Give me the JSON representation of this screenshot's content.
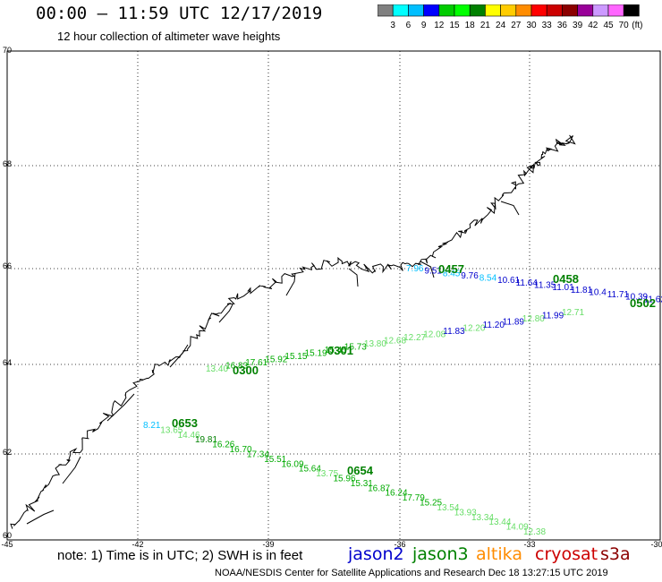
{
  "title": "00:00 – 11:59 UTC 12/17/2019",
  "subtitle": "12 hour collection of altimeter wave heights",
  "legend": {
    "unit": "(ft)",
    "colors": [
      "#808080",
      "#00ffff",
      "#00bfff",
      "#0000ff",
      "#00cc00",
      "#00ff00",
      "#008000",
      "#ffff00",
      "#ffcc00",
      "#ff8c00",
      "#ff0000",
      "#cc0000",
      "#8b0000",
      "#990099",
      "#cc99ff",
      "#ff66ff",
      "#000000"
    ],
    "labels": [
      "3",
      "6",
      "9",
      "12",
      "15",
      "18",
      "21",
      "24",
      "27",
      "30",
      "33",
      "36",
      "39",
      "42",
      "45",
      "70"
    ]
  },
  "axes": {
    "lat_labels": [
      "70",
      "68",
      "66",
      "64",
      "62",
      "60"
    ],
    "lon_labels": [
      "-45",
      "-42",
      "-39",
      "-36",
      "-33",
      "-30"
    ]
  },
  "tracks": [
    {
      "time_labels": [
        {
          "text": "0457",
          "color": "#008000"
        },
        {
          "text": "0458",
          "color": "#008000"
        },
        {
          "text": "0502",
          "color": "#008000"
        }
      ],
      "values": [
        {
          "text": "7.96",
          "color": "#00bfff"
        },
        {
          "text": "9.51",
          "color": "#0000cd"
        },
        {
          "text": "8.45",
          "color": "#00bfff"
        },
        {
          "text": "9.76",
          "color": "#0000cd"
        },
        {
          "text": "8.54",
          "color": "#00bfff"
        },
        {
          "text": "10.61",
          "color": "#0000cd"
        },
        {
          "text": "11.64",
          "color": "#0000cd"
        },
        {
          "text": "11.35",
          "color": "#0000cd"
        },
        {
          "text": "11.01",
          "color": "#0000cd"
        },
        {
          "text": "11.81",
          "color": "#0000cd"
        },
        {
          "text": "10.4",
          "color": "#0000cd"
        },
        {
          "text": "11.71",
          "color": "#0000cd"
        },
        {
          "text": "10.39",
          "color": "#0000cd"
        },
        {
          "text": "11.62",
          "color": "#0000cd"
        },
        {
          "text": "11.15",
          "color": "#0000cd"
        }
      ]
    },
    {
      "time_labels": [
        {
          "text": "0300",
          "color": "#008000"
        },
        {
          "text": "0301",
          "color": "#008000"
        }
      ],
      "values": [
        {
          "text": "13.40",
          "color": "#66dd66"
        },
        {
          "text": "16.83",
          "color": "#00aa00"
        },
        {
          "text": "17.61",
          "color": "#00aa00"
        },
        {
          "text": "15.92",
          "color": "#00aa00"
        },
        {
          "text": "15.15",
          "color": "#00aa00"
        },
        {
          "text": "15.19",
          "color": "#00aa00"
        },
        {
          "text": "15.45",
          "color": "#00aa00"
        },
        {
          "text": "15.73",
          "color": "#00aa00"
        },
        {
          "text": "13.80",
          "color": "#66dd66"
        },
        {
          "text": "12.68",
          "color": "#66dd66"
        },
        {
          "text": "12.27",
          "color": "#66dd66"
        },
        {
          "text": "12.08",
          "color": "#66dd66"
        },
        {
          "text": "11.83",
          "color": "#0000cd"
        },
        {
          "text": "12.20",
          "color": "#66dd66"
        },
        {
          "text": "11.20",
          "color": "#0000cd"
        },
        {
          "text": "11.89",
          "color": "#0000cd"
        },
        {
          "text": "12.80",
          "color": "#66dd66"
        },
        {
          "text": "11.99",
          "color": "#0000cd"
        },
        {
          "text": "12.71",
          "color": "#66dd66"
        }
      ]
    },
    {
      "time_labels": [
        {
          "text": "0653",
          "color": "#008000"
        },
        {
          "text": "0654",
          "color": "#008000"
        }
      ],
      "values": [
        {
          "text": "8.21",
          "color": "#00bfff"
        },
        {
          "text": "13.65",
          "color": "#66dd66"
        },
        {
          "text": "14.46",
          "color": "#66dd66"
        },
        {
          "text": "19.81",
          "color": "#008000"
        },
        {
          "text": "16.26",
          "color": "#00aa00"
        },
        {
          "text": "16.70",
          "color": "#00aa00"
        },
        {
          "text": "17.34",
          "color": "#00aa00"
        },
        {
          "text": "15.51",
          "color": "#00aa00"
        },
        {
          "text": "16.09",
          "color": "#00aa00"
        },
        {
          "text": "15.64",
          "color": "#00aa00"
        },
        {
          "text": "13.75",
          "color": "#66dd66"
        },
        {
          "text": "15.96",
          "color": "#00aa00"
        },
        {
          "text": "15.31",
          "color": "#00aa00"
        },
        {
          "text": "16.87",
          "color": "#00aa00"
        },
        {
          "text": "16.24",
          "color": "#00aa00"
        },
        {
          "text": "17.79",
          "color": "#00aa00"
        },
        {
          "text": "15.25",
          "color": "#00aa00"
        },
        {
          "text": "13.54",
          "color": "#66dd66"
        },
        {
          "text": "13.93",
          "color": "#66dd66"
        },
        {
          "text": "13.34",
          "color": "#66dd66"
        },
        {
          "text": "13.44",
          "color": "#66dd66"
        },
        {
          "text": "14.09",
          "color": "#66dd66"
        },
        {
          "text": "12.38",
          "color": "#66dd66"
        }
      ]
    }
  ],
  "note": "note:  1) Time is in UTC; 2) SWH is in feet",
  "satellites": [
    {
      "name": "jason2",
      "color": "#0000cc"
    },
    {
      "name": "jason3",
      "color": "#008000"
    },
    {
      "name": "altika",
      "color": "#ff8c00"
    },
    {
      "name": "cryosat",
      "color": "#cc0000"
    },
    {
      "name": "s3a",
      "color": "#8b0000"
    }
  ],
  "credit": "NOAA/NESDIS Center for Satellite Applications and Research     Dec 18 13:27:15 UTC 2019"
}
